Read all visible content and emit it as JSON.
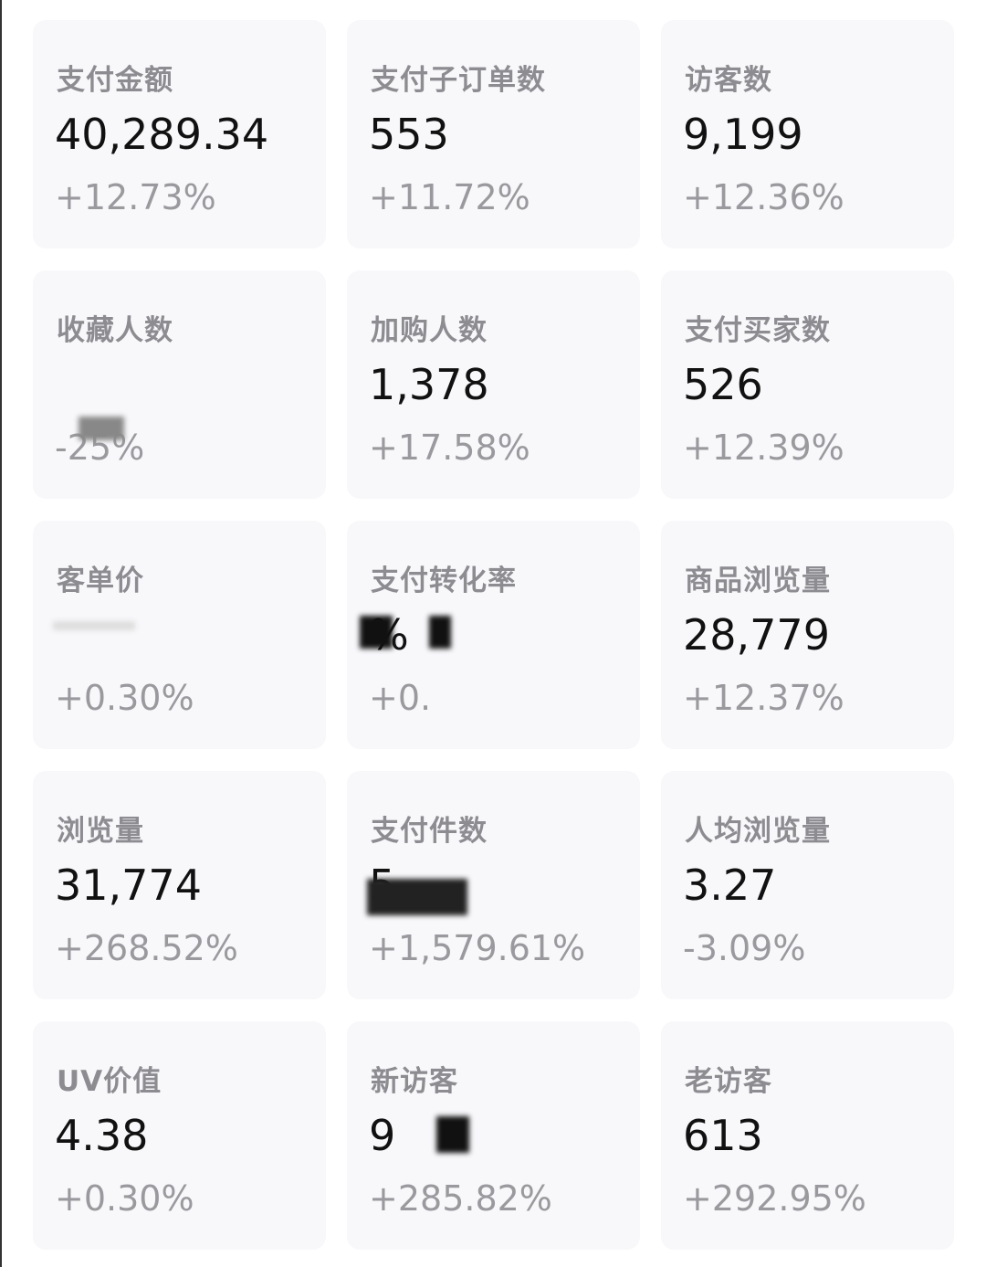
{
  "cards": [
    {
      "label": "支付金额",
      "value": "40,289.34",
      "change": "+12.73%"
    },
    {
      "label": "支付子订单数",
      "value": "553",
      "change": "+11.72%"
    },
    {
      "label": "访客数",
      "value": "9,199",
      "change": "+12.36%"
    },
    {
      "label": "收藏人数",
      "value": "",
      "change": "-25%",
      "redacted": true
    },
    {
      "label": "加购人数",
      "value": "1,378",
      "change": "+17.58%"
    },
    {
      "label": "支付买家数",
      "value": "526",
      "change": "+12.39%"
    },
    {
      "label": "客单价",
      "value": "",
      "change": "+0.30%",
      "redacted": true
    },
    {
      "label": "支付转化率",
      "value": "%",
      "change": "+0.",
      "redacted": true
    },
    {
      "label": "商品浏览量",
      "value": "28,779",
      "change": "+12.37%"
    },
    {
      "label": "浏览量",
      "value": "31,774",
      "change": "+268.52%"
    },
    {
      "label": "支付件数",
      "value": "5",
      "change": "+1,579.61%",
      "redacted": true
    },
    {
      "label": "人均浏览量",
      "value": "3.27",
      "change": "-3.09%"
    },
    {
      "label": "UV价值",
      "value": "4.38",
      "change": "+0.30%"
    },
    {
      "label": "新访客",
      "value": "9",
      "change": "+285.82%",
      "redacted": true
    },
    {
      "label": "老访客",
      "value": "613",
      "change": "+292.95%"
    }
  ],
  "colors": {
    "card_bg": "#f8f8fb",
    "label": "#8c8c91",
    "value": "#111111",
    "change": "#9a9a9e"
  }
}
